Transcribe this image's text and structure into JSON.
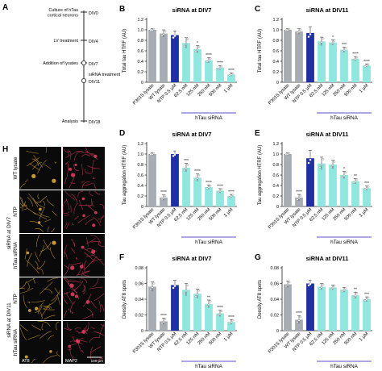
{
  "colors": {
    "p301s": "#a8adb3",
    "wt": "#a8adb3",
    "ntp": "#1f2fa6",
    "htau": "#8ee8e0",
    "rule": "#5b4fc4",
    "micro_bg": "#0a0a0a",
    "at8": "#d9a832",
    "map2": "#e0395f",
    "sig": "#222222"
  },
  "timeline": {
    "label": "A",
    "steps": [
      {
        "text": "Culture of hTau\ncortical neurons",
        "day": "DIV0"
      },
      {
        "text": "LV treatment",
        "day": "DIV4"
      },
      {
        "text": "Addition of lysates",
        "day": "DIV7"
      },
      {
        "text": "siRNA treatment",
        "day": "DIV11"
      },
      {
        "text": "Analysis",
        "day": "DIV18"
      }
    ]
  },
  "micrographs": {
    "label": "H",
    "rows": [
      {
        "group": "",
        "label": "WT lysate"
      },
      {
        "group": "siRNA at DIV7",
        "label": "NTP"
      },
      {
        "group": "siRNA at DIV7",
        "label": "hTau siRNA"
      },
      {
        "group": "siRNA at DIV11",
        "label": "NTP"
      },
      {
        "group": "siRNA at DIV11",
        "label": "hTau siRNA"
      }
    ],
    "group_labels": [
      "siRNA at DIV7",
      "siRNA at DIV11"
    ],
    "channels": [
      "AT8",
      "MAP2"
    ],
    "scale": "100 µm"
  },
  "chart_data": [
    {
      "panel": "B",
      "type": "bar",
      "title": "siRNA at DIV7",
      "ylabel": "Total tau HTRF (AU)",
      "categories": [
        "P301S lysate",
        "WT lysate",
        "NTP 0.5 µM",
        "62.5 nM",
        "125 nM",
        "250 nM",
        "500 nM",
        "1 µM"
      ],
      "values": [
        1.0,
        0.93,
        0.9,
        0.75,
        0.63,
        0.42,
        0.28,
        0.15
      ],
      "errors": [
        0.02,
        0.07,
        0.08,
        0.1,
        0.07,
        0.05,
        0.04,
        0.03
      ],
      "sig": [
        "",
        "",
        "",
        "",
        "*",
        "****",
        "****",
        "****"
      ],
      "ylim": [
        0,
        1.2
      ],
      "yticks": [
        0,
        0.2,
        0.4,
        0.6,
        0.8,
        1.0,
        1.2
      ],
      "yticklabels": [
        "0",
        "0.2",
        "0.4",
        "0.6",
        "0.8",
        "1.0",
        "1.2"
      ],
      "group_label": "hTau siRNA"
    },
    {
      "panel": "C",
      "type": "bar",
      "title": "siRNA at DIV11",
      "ylabel": "Total tau HTRF (AU)",
      "categories": [
        "P301S lysate",
        "WT lysate",
        "NTP 0.5 µM",
        "62.5 nM",
        "125 nM",
        "250 nM",
        "500 nM",
        "1 µM"
      ],
      "values": [
        1.0,
        0.97,
        0.94,
        0.78,
        0.76,
        0.62,
        0.45,
        0.32
      ],
      "errors": [
        0.02,
        0.05,
        0.12,
        0.08,
        0.05,
        0.05,
        0.04,
        0.03
      ],
      "sig": [
        "",
        "",
        "",
        "",
        "*",
        "***",
        "****",
        "****"
      ],
      "ylim": [
        0,
        1.2
      ],
      "yticks": [
        0,
        0.2,
        0.4,
        0.6,
        0.8,
        1.0,
        1.2
      ],
      "yticklabels": [
        "0",
        "0.2",
        "0.4",
        "0.6",
        "0.8",
        "1.0",
        "1.2"
      ],
      "group_label": "hTau siRNA"
    },
    {
      "panel": "D",
      "type": "bar",
      "title": "siRNA at DIV7",
      "ylabel": "Tau aggregation HTRF (AU)",
      "categories": [
        "P301S lysate",
        "WT lysate",
        "NTP 0.5 µM",
        "62.5 nM",
        "125 nM",
        "250 nM",
        "500 nM",
        "1 µM"
      ],
      "values": [
        1.0,
        0.17,
        1.0,
        0.74,
        0.55,
        0.37,
        0.3,
        0.2
      ],
      "errors": [
        0.02,
        0.05,
        0.06,
        0.08,
        0.07,
        0.04,
        0.04,
        0.03
      ],
      "sig": [
        "",
        "****",
        "",
        "***",
        "****",
        "****",
        "****",
        "****"
      ],
      "ylim": [
        0,
        1.2
      ],
      "yticks": [
        0,
        0.2,
        0.4,
        0.6,
        0.8,
        1.0,
        1.2
      ],
      "yticklabels": [
        "0",
        "0.2",
        "0.4",
        "0.6",
        "0.8",
        "1.0",
        "1.2"
      ],
      "group_label": "hTau siRNA"
    },
    {
      "panel": "E",
      "type": "bar",
      "title": "siRNA at DIV11",
      "ylabel": "Tau aggregation HTRF (AU)",
      "categories": [
        "P301S lysate",
        "WT lysate",
        "NTP 0.5 µM",
        "62.5 nM",
        "125 nM",
        "250 nM",
        "500 nM",
        "1 µM"
      ],
      "values": [
        1.0,
        0.17,
        0.92,
        0.82,
        0.8,
        0.6,
        0.48,
        0.35
      ],
      "errors": [
        0.02,
        0.06,
        0.15,
        0.12,
        0.08,
        0.07,
        0.05,
        0.04
      ],
      "sig": [
        "",
        "****",
        "",
        "",
        "",
        "*",
        "**",
        "***"
      ],
      "ylim": [
        0,
        1.2
      ],
      "yticks": [
        0,
        0.2,
        0.4,
        0.6,
        0.8,
        1.0,
        1.2
      ],
      "yticklabels": [
        "0",
        "0.2",
        "0.4",
        "0.6",
        "0.8",
        "1.0",
        "1.2"
      ],
      "group_label": "hTau siRNA"
    },
    {
      "panel": "F",
      "type": "bar",
      "title": "siRNA at DIV7",
      "ylabel": "Density AT8 spots",
      "categories": [
        "P301S lysate",
        "WT lysate",
        "NTP 0.5 µM",
        "62.5 nM",
        "125 nM",
        "250 nM",
        "500 nM",
        "1 µM"
      ],
      "values": [
        0.056,
        0.012,
        0.058,
        0.052,
        0.047,
        0.034,
        0.022,
        0.011
      ],
      "errors": [
        0.006,
        0.004,
        0.006,
        0.008,
        0.006,
        0.005,
        0.004,
        0.003
      ],
      "sig": [
        "",
        "****",
        "",
        "",
        "",
        "**",
        "****",
        "****"
      ],
      "ylim": [
        0,
        0.08
      ],
      "yticks": [
        0,
        0.02,
        0.04,
        0.06,
        0.08
      ],
      "yticklabels": [
        "0",
        "0.02",
        "0.04",
        "0.06",
        "0.08"
      ],
      "group_label": "hTau siRNA"
    },
    {
      "panel": "G",
      "type": "bar",
      "title": "siRNA at DIV11",
      "ylabel": "Density AT8 spots",
      "categories": [
        "P301S lysate",
        "WT lysate",
        "NTP 0.5 µM",
        "62.5 nM",
        "125 nM",
        "250 nM",
        "500 nM",
        "1 µM"
      ],
      "values": [
        0.059,
        0.014,
        0.06,
        0.056,
        0.055,
        0.052,
        0.045,
        0.04
      ],
      "errors": [
        0.004,
        0.005,
        0.004,
        0.004,
        0.003,
        0.003,
        0.004,
        0.003
      ],
      "sig": [
        "",
        "****",
        "",
        "",
        "",
        "",
        "**",
        "***"
      ],
      "ylim": [
        0,
        0.08
      ],
      "yticks": [
        0,
        0.02,
        0.04,
        0.06,
        0.08
      ],
      "yticklabels": [
        "0",
        "0.02",
        "0.04",
        "0.06",
        "0.08"
      ],
      "group_label": "hTau siRNA"
    }
  ]
}
